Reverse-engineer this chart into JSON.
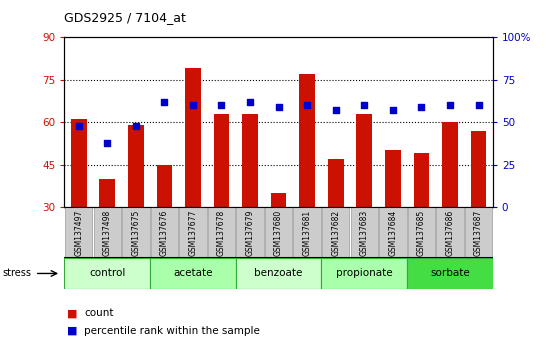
{
  "title": "GDS2925 / 7104_at",
  "samples": [
    "GSM137497",
    "GSM137498",
    "GSM137675",
    "GSM137676",
    "GSM137677",
    "GSM137678",
    "GSM137679",
    "GSM137680",
    "GSM137681",
    "GSM137682",
    "GSM137683",
    "GSM137684",
    "GSM137685",
    "GSM137686",
    "GSM137687"
  ],
  "counts": [
    61,
    40,
    59,
    45,
    79,
    63,
    63,
    35,
    77,
    47,
    63,
    50,
    49,
    60,
    57
  ],
  "percentile": [
    48,
    38,
    48,
    62,
    60,
    60,
    62,
    59,
    60,
    57,
    60,
    57,
    59,
    60,
    60
  ],
  "groups": [
    {
      "label": "control",
      "start": 0,
      "end": 3,
      "color": "#ccffcc"
    },
    {
      "label": "acetate",
      "start": 3,
      "end": 6,
      "color": "#aaffaa"
    },
    {
      "label": "benzoate",
      "start": 6,
      "end": 9,
      "color": "#ccffcc"
    },
    {
      "label": "propionate",
      "start": 9,
      "end": 12,
      "color": "#aaffaa"
    },
    {
      "label": "sorbate",
      "start": 12,
      "end": 15,
      "color": "#44dd44"
    }
  ],
  "ylim_left": [
    30,
    90
  ],
  "yticks_left": [
    30,
    45,
    60,
    75,
    90
  ],
  "ylim_right": [
    0,
    100
  ],
  "yticks_right": [
    0,
    25,
    50,
    75,
    100
  ],
  "bar_color": "#cc1100",
  "dot_color": "#0000cc",
  "grid_color": "#000000",
  "title_color": "#000000",
  "left_tick_color": "#cc1100",
  "right_tick_color": "#0000cc",
  "bar_width": 0.55,
  "stress_label": "stress",
  "legend_count": "count",
  "legend_pct": "percentile rank within the sample",
  "xlabel_color": "#000000",
  "sample_box_color": "#cccccc",
  "sample_box_edge": "#888888"
}
